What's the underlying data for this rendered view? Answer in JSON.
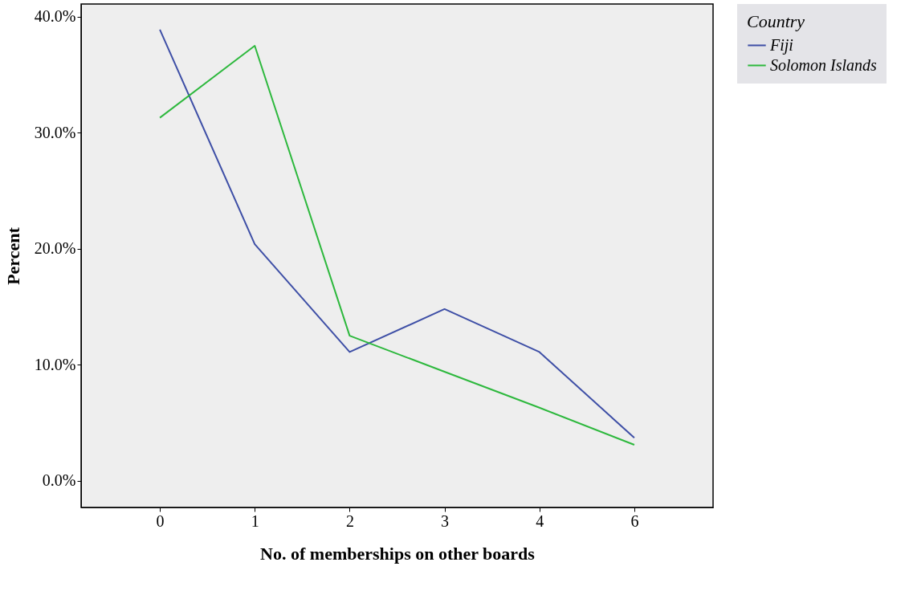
{
  "chart_data": {
    "type": "line",
    "xlabel": "No. of memberships on other boards",
    "ylabel": "Percent",
    "legend_title": "Country",
    "categories": [
      "0",
      "1",
      "2",
      "3",
      "4",
      "6"
    ],
    "series": [
      {
        "name": "Fiji",
        "color": "#3e4fa6",
        "values": [
          38.9,
          20.4,
          11.1,
          14.8,
          11.1,
          3.7
        ]
      },
      {
        "name": "Solomon Islands",
        "color": "#2db83d",
        "values": [
          31.3,
          37.5,
          12.5,
          9.4,
          6.3,
          3.1
        ]
      }
    ],
    "ylim": [
      -2.3,
      41.1
    ],
    "yticks": [
      {
        "value": 0,
        "label": "0.0%"
      },
      {
        "value": 10,
        "label": "10.0%"
      },
      {
        "value": 20,
        "label": "20.0%"
      },
      {
        "value": 30,
        "label": "30.0%"
      },
      {
        "value": 40,
        "label": "40.0%"
      }
    ],
    "grid": false,
    "legend": "right",
    "marker": "none",
    "line_style": "solid"
  }
}
